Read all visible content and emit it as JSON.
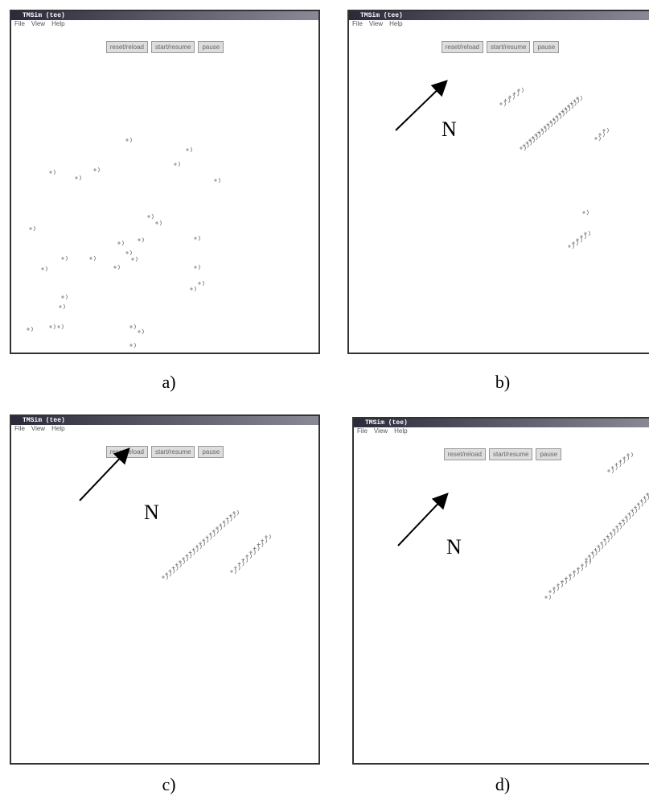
{
  "panels": [
    {
      "window_title": "TMSim (tee)",
      "menu": [
        "File",
        "View",
        "Help"
      ],
      "buttons": [
        "reset/reload",
        "start/resume",
        "pause"
      ],
      "caption": "a)"
    },
    {
      "window_title": "TMSim (tee)",
      "menu": [
        "File",
        "View",
        "Help"
      ],
      "buttons": [
        "reset/reload",
        "start/resume",
        "pause"
      ],
      "label": "N",
      "caption": "b)"
    },
    {
      "window_title": "TMSim (tee)",
      "menu": [
        "File",
        "View",
        "Help"
      ],
      "buttons": [
        "reset/reload",
        "start/resume",
        "pause"
      ],
      "label": "N",
      "caption": "c)"
    },
    {
      "window_title": "TMSim (tee)",
      "menu": [
        "File",
        "View",
        "Help"
      ],
      "buttons": [
        "reset/reload",
        "start/resume",
        "pause"
      ],
      "label": "N",
      "caption": "d)"
    }
  ]
}
